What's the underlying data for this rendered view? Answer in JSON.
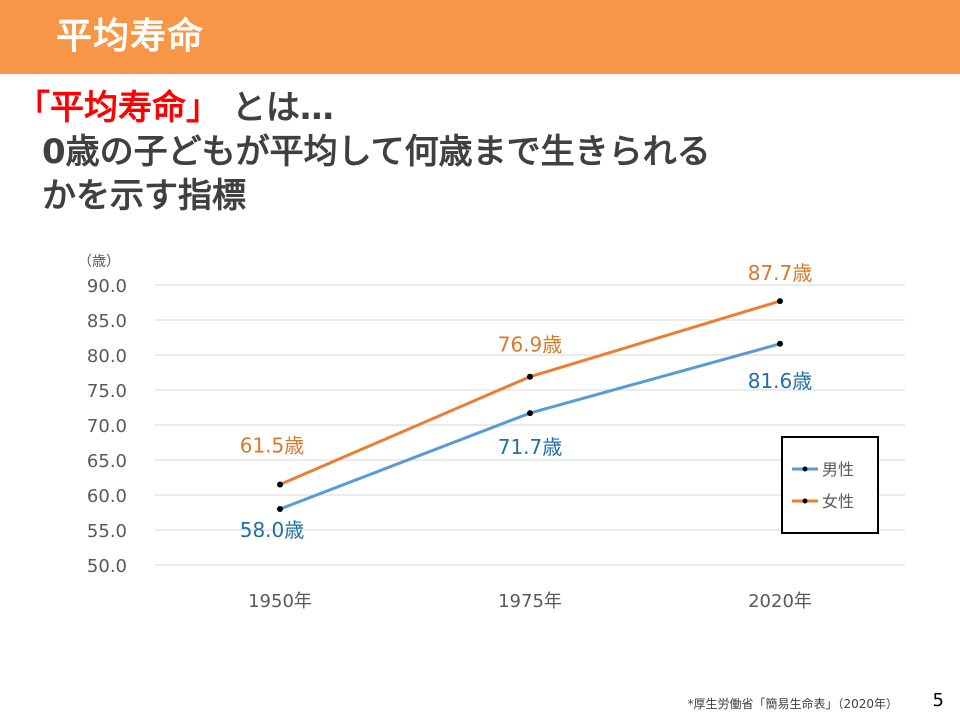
{
  "header": {
    "title": "平均寿命"
  },
  "headline": {
    "quoted_term": "「平均寿命」",
    "suffix": "とは…",
    "line2": "0歳の子どもが平均して何歳まで生きられる",
    "line3": "かを示す指標"
  },
  "chart_data": {
    "type": "line",
    "categories": [
      "1950年",
      "1975年",
      "2020年"
    ],
    "series": [
      {
        "name": "男性",
        "values": [
          58.0,
          71.7,
          81.6
        ],
        "labels": [
          "58.0歳",
          "71.7歳",
          "81.6歳"
        ],
        "color": "#5b9bd5",
        "label_color": "#1f6fa8"
      },
      {
        "name": "女性",
        "values": [
          61.5,
          76.9,
          87.7
        ],
        "labels": [
          "61.5歳",
          "76.9歳",
          "87.7歳"
        ],
        "color": "#ed7d31",
        "label_color": "#d77a2a"
      }
    ],
    "ylabel": "（歳）",
    "ylim": [
      50,
      90
    ],
    "yticks": [
      "50.0",
      "55.0",
      "60.0",
      "65.0",
      "70.0",
      "75.0",
      "80.0",
      "85.0",
      "90.0"
    ],
    "grid": true,
    "legend": "right"
  },
  "footnote": "*厚生労働省「簡易生命表」（2020年）",
  "page_number": "5"
}
